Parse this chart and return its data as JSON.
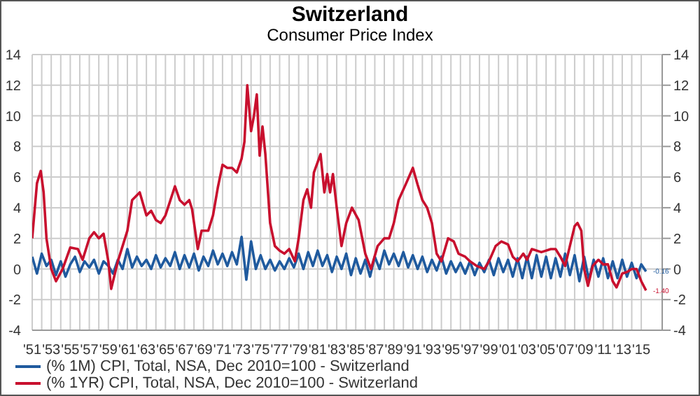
{
  "chart_data": {
    "type": "line",
    "title": "Switzerland",
    "subtitle": "Consumer Price Index",
    "xlim": [
      1951,
      2017.2
    ],
    "xticks": [
      {
        "value": 1951,
        "label": "'51"
      },
      {
        "value": 1952,
        "label": null
      },
      {
        "value": 1953,
        "label": "'53"
      },
      {
        "value": 1954,
        "label": null
      },
      {
        "value": 1955,
        "label": "'55"
      },
      {
        "value": 1956,
        "label": null
      },
      {
        "value": 1957,
        "label": "'57"
      },
      {
        "value": 1958,
        "label": null
      },
      {
        "value": 1959,
        "label": "'59"
      },
      {
        "value": 1960,
        "label": null
      },
      {
        "value": 1961,
        "label": "'61"
      },
      {
        "value": 1962,
        "label": null
      },
      {
        "value": 1963,
        "label": "'63"
      },
      {
        "value": 1964,
        "label": null
      },
      {
        "value": 1965,
        "label": "'65"
      },
      {
        "value": 1966,
        "label": null
      },
      {
        "value": 1967,
        "label": "'67"
      },
      {
        "value": 1968,
        "label": null
      },
      {
        "value": 1969,
        "label": "'69"
      },
      {
        "value": 1970,
        "label": null
      },
      {
        "value": 1971,
        "label": "'71"
      },
      {
        "value": 1972,
        "label": null
      },
      {
        "value": 1973,
        "label": "'73"
      },
      {
        "value": 1974,
        "label": null
      },
      {
        "value": 1975,
        "label": "'75"
      },
      {
        "value": 1976,
        "label": null
      },
      {
        "value": 1977,
        "label": "'77"
      },
      {
        "value": 1978,
        "label": null
      },
      {
        "value": 1979,
        "label": "'79"
      },
      {
        "value": 1980,
        "label": null
      },
      {
        "value": 1981,
        "label": "'81"
      },
      {
        "value": 1982,
        "label": null
      },
      {
        "value": 1983,
        "label": "'83"
      },
      {
        "value": 1984,
        "label": null
      },
      {
        "value": 1985,
        "label": "'85"
      },
      {
        "value": 1986,
        "label": null
      },
      {
        "value": 1987,
        "label": "'87"
      },
      {
        "value": 1988,
        "label": null
      },
      {
        "value": 1989,
        "label": "'89"
      },
      {
        "value": 1990,
        "label": null
      },
      {
        "value": 1991,
        "label": "'91"
      },
      {
        "value": 1992,
        "label": null
      },
      {
        "value": 1993,
        "label": "'93"
      },
      {
        "value": 1994,
        "label": null
      },
      {
        "value": 1995,
        "label": "'95"
      },
      {
        "value": 1996,
        "label": null
      },
      {
        "value": 1997,
        "label": "'97"
      },
      {
        "value": 1998,
        "label": null
      },
      {
        "value": 1999,
        "label": "'99"
      },
      {
        "value": 2000,
        "label": null
      },
      {
        "value": 2001,
        "label": "'01"
      },
      {
        "value": 2002,
        "label": null
      },
      {
        "value": 2003,
        "label": "'03"
      },
      {
        "value": 2004,
        "label": null
      },
      {
        "value": 2005,
        "label": "'05"
      },
      {
        "value": 2006,
        "label": null
      },
      {
        "value": 2007,
        "label": "'07"
      },
      {
        "value": 2008,
        "label": null
      },
      {
        "value": 2009,
        "label": "'09"
      },
      {
        "value": 2010,
        "label": null
      },
      {
        "value": 2011,
        "label": "'11"
      },
      {
        "value": 2012,
        "label": null
      },
      {
        "value": 2013,
        "label": "'13"
      },
      {
        "value": 2014,
        "label": null
      },
      {
        "value": 2015,
        "label": "'15"
      }
    ],
    "ylim": [
      -4,
      14
    ],
    "yticks": [
      -4,
      -2,
      0,
      2,
      4,
      6,
      8,
      10,
      12,
      14
    ],
    "y2lim": [
      -4,
      14
    ],
    "y2ticks": [
      -4,
      -2,
      0,
      2,
      4,
      6,
      8,
      10,
      12,
      14
    ],
    "grid": true,
    "legend": "bottom left",
    "marker": "none",
    "line_style": "solid",
    "annotations": [
      {
        "text": "-0.16",
        "x": 2015.5,
        "y": -0.16
      },
      {
        "text": "-1.40",
        "x": 2015.5,
        "y": -1.4
      }
    ],
    "series": [
      {
        "name": "(% 1M) CPI, Total, NSA, Dec 2010=100 - Switzerland",
        "color": "#1f5a9e",
        "x": [
          1951,
          1951.5,
          1952,
          1952.5,
          1953,
          1953.5,
          1954,
          1954.5,
          1955,
          1955.5,
          1956,
          1956.5,
          1957,
          1957.5,
          1958,
          1958.5,
          1959,
          1959.5,
          1960,
          1960.5,
          1961,
          1961.5,
          1962,
          1962.5,
          1963,
          1963.5,
          1964,
          1964.5,
          1965,
          1965.5,
          1966,
          1966.5,
          1967,
          1967.5,
          1968,
          1968.5,
          1969,
          1969.5,
          1970,
          1970.5,
          1971,
          1971.5,
          1972,
          1972.5,
          1973,
          1973.5,
          1974,
          1974.5,
          1975,
          1975.5,
          1976,
          1976.5,
          1977,
          1977.5,
          1978,
          1978.5,
          1979,
          1979.5,
          1980,
          1980.5,
          1981,
          1981.5,
          1982,
          1982.5,
          1983,
          1983.5,
          1984,
          1984.5,
          1985,
          1985.5,
          1986,
          1986.5,
          1987,
          1987.5,
          1988,
          1988.5,
          1989,
          1989.5,
          1990,
          1990.5,
          1991,
          1991.5,
          1992,
          1992.5,
          1993,
          1993.5,
          1994,
          1994.5,
          1995,
          1995.5,
          1996,
          1996.5,
          1997,
          1997.5,
          1998,
          1998.5,
          1999,
          1999.5,
          2000,
          2000.5,
          2001,
          2001.5,
          2002,
          2002.5,
          2003,
          2003.5,
          2004,
          2004.5,
          2005,
          2005.5,
          2006,
          2006.5,
          2007,
          2007.5,
          2008,
          2008.5,
          2009,
          2009.5,
          2010,
          2010.5,
          2011,
          2011.5,
          2012,
          2012.5,
          2013,
          2013.5,
          2014,
          2014.5,
          2015,
          2015.5
        ],
        "values": [
          0.8,
          -0.3,
          1.0,
          0.2,
          0.6,
          -0.4,
          0.5,
          -0.5,
          0.3,
          0.8,
          -0.2,
          0.5,
          0.1,
          0.6,
          -0.3,
          0.5,
          0.2,
          -0.3,
          0.6,
          0.0,
          1.3,
          0.1,
          0.8,
          0.2,
          0.6,
          0.0,
          0.9,
          0.1,
          0.7,
          0.2,
          1.1,
          0.0,
          0.9,
          0.1,
          1.0,
          -0.1,
          0.8,
          0.2,
          1.2,
          0.3,
          1.0,
          0.2,
          1.1,
          0.3,
          2.1,
          -0.7,
          1.8,
          0.0,
          0.9,
          0.0,
          0.6,
          -0.1,
          0.5,
          0.0,
          0.7,
          0.1,
          1.0,
          0.0,
          1.1,
          0.2,
          1.2,
          0.2,
          0.9,
          -0.2,
          0.8,
          0.0,
          1.0,
          -0.4,
          0.7,
          -0.3,
          0.6,
          -0.5,
          0.8,
          0.0,
          1.2,
          0.3,
          1.0,
          0.2,
          1.1,
          0.1,
          0.9,
          0.0,
          0.8,
          -0.2,
          0.6,
          -0.1,
          0.8,
          -0.3,
          0.5,
          -0.2,
          0.4,
          -0.3,
          0.5,
          -0.4,
          0.4,
          -0.2,
          0.6,
          -0.4,
          0.7,
          -0.2,
          0.6,
          -0.5,
          0.7,
          -0.6,
          0.8,
          -0.6,
          0.9,
          -0.5,
          0.8,
          -0.6,
          0.7,
          -0.5,
          1.0,
          -0.4,
          0.9,
          -0.8,
          0.8,
          -0.7,
          0.6,
          -0.5,
          0.7,
          -0.6,
          0.5,
          -0.6,
          0.6,
          -0.5,
          0.4,
          -0.6,
          0.3,
          -0.16
        ]
      },
      {
        "name": "(% 1YR) CPI, Total, NSA, Dec 2010=100 - Switzerland",
        "color": "#c8102e",
        "x": [
          1951,
          1951.5,
          1951.9,
          1952.2,
          1952.5,
          1953,
          1953.5,
          1954.2,
          1955,
          1955.8,
          1956.3,
          1957,
          1957.5,
          1958,
          1958.5,
          1959,
          1959.3,
          1960,
          1960.5,
          1961,
          1961.5,
          1962.3,
          1963,
          1963.5,
          1964,
          1964.5,
          1965,
          1966,
          1966.5,
          1967,
          1967.5,
          1967.8,
          1968.4,
          1968.8,
          1969.5,
          1970,
          1970.5,
          1971,
          1971.5,
          1972,
          1972.5,
          1973,
          1973.3,
          1973.6,
          1974,
          1974.3,
          1974.6,
          1974.9,
          1975.2,
          1975.5,
          1976,
          1976.5,
          1977,
          1977.5,
          1978,
          1978.6,
          1979,
          1979.5,
          1979.9,
          1980.3,
          1980.6,
          1981.3,
          1981.7,
          1982,
          1982.3,
          1982.6,
          1983,
          1983.5,
          1984,
          1984.6,
          1985.3,
          1986,
          1986.6,
          1987.3,
          1988,
          1988.5,
          1989,
          1989.5,
          1990.3,
          1991,
          1991.5,
          1992,
          1992.5,
          1993,
          1993.5,
          1994,
          1994.7,
          1995.3,
          1995.8,
          1996.5,
          1997,
          1997.7,
          1998.5,
          1999,
          1999.7,
          2000.3,
          2001,
          2001.5,
          2002,
          2002.6,
          2003,
          2003.5,
          2004.5,
          2005.5,
          2006,
          2006.5,
          2007,
          2007.5,
          2008,
          2008.3,
          2008.7,
          2009,
          2009.4,
          2009.9,
          2010.5,
          2011,
          2011.5,
          2012,
          2012.4,
          2013,
          2013.5,
          2014,
          2014.5,
          2015,
          2015.5
        ],
        "values": [
          2,
          5.6,
          6.4,
          5,
          2,
          0,
          -0.8,
          0,
          1.4,
          1.3,
          0.6,
          2,
          2.4,
          2,
          2.3,
          0.5,
          -1.3,
          0.5,
          1.5,
          2.5,
          4.5,
          5,
          3.5,
          3.8,
          3.2,
          3,
          3.5,
          5.4,
          4.5,
          4.2,
          4.5,
          3.9,
          1.3,
          2.5,
          2.5,
          3.5,
          5.3,
          6.8,
          6.6,
          6.6,
          6.3,
          7.2,
          8.3,
          12,
          9,
          10,
          11.4,
          7.4,
          9.3,
          7.5,
          3,
          1.5,
          1.2,
          1,
          1.3,
          0.5,
          2,
          4.5,
          5.2,
          4,
          6.3,
          7.5,
          5,
          6.2,
          5,
          6.2,
          4,
          1.5,
          3,
          4,
          3.2,
          1,
          0,
          1.5,
          2,
          2,
          3,
          4.5,
          5.6,
          6.6,
          5.5,
          4.5,
          4,
          3,
          1,
          0.5,
          2,
          1.8,
          1,
          0.8,
          0.5,
          0.2,
          0,
          0.5,
          1.5,
          1.8,
          1.6,
          0.8,
          0.5,
          1,
          0.6,
          1.3,
          1.1,
          1.3,
          1.3,
          0.8,
          0.2,
          1.5,
          2.8,
          3,
          2.5,
          0,
          -1.1,
          0.2,
          0.6,
          0.3,
          0.3,
          -0.8,
          -1.2,
          -0.3,
          -0.2,
          0,
          0,
          -0.8,
          -1.4
        ]
      }
    ]
  }
}
